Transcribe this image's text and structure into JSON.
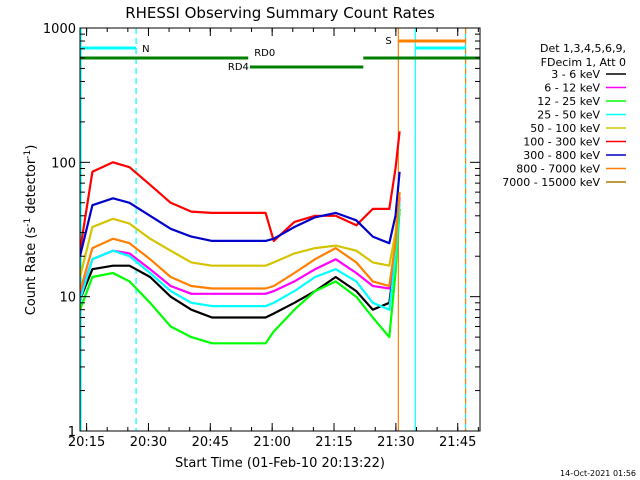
{
  "chart_data": {
    "type": "line",
    "title": "RHESSI Observing Summary Count Rates",
    "xlabel": "Start Time (01-Feb-10 20:13:22)",
    "ylabel_main": "Count Rate (s",
    "ylabel_sup1": "-1",
    "ylabel_mid": " detector",
    "ylabel_sup2": "-1",
    "ylabel_end": ")",
    "y_scale": "log",
    "ylim": [
      1,
      1000
    ],
    "xlim_minutes": [
      0,
      97
    ],
    "x_tick_labels": [
      {
        "label": "20:15",
        "t": 1.6
      },
      {
        "label": "20:30",
        "t": 16.6
      },
      {
        "label": "20:45",
        "t": 31.6
      },
      {
        "label": "21:00",
        "t": 46.6
      },
      {
        "label": "21:15",
        "t": 61.6
      },
      {
        "label": "21:30",
        "t": 76.6
      },
      {
        "label": "21:45",
        "t": 91.6
      }
    ],
    "y_tick_labels": [
      {
        "label": "1",
        "v": 1
      },
      {
        "label": "10",
        "v": 10
      },
      {
        "label": "100",
        "v": 100
      },
      {
        "label": "1000",
        "v": 1000
      }
    ],
    "legend_header": [
      "Det 1,3,4,5,6,9,",
      "FDecim 1, Att 0"
    ],
    "legend_position": "right",
    "timestamp": "14-Oct-2021 01:56",
    "series": [
      {
        "name": "3 - 6 keV",
        "color": "#000000",
        "x": [
          0,
          3,
          8,
          12,
          17,
          22,
          27,
          32,
          40,
          45,
          47,
          52,
          57,
          62,
          67,
          71,
          75,
          76.5,
          77.5
        ],
        "y": [
          9.5,
          16,
          17,
          17,
          14,
          10,
          8,
          7,
          7,
          7,
          7.5,
          9,
          11,
          14,
          11,
          8,
          9,
          20,
          45
        ]
      },
      {
        "name": "6 - 12 keV",
        "color": "#ff00ff",
        "x": [
          0,
          3,
          8,
          12,
          17,
          22,
          27,
          32,
          40,
          45,
          47,
          52,
          57,
          62,
          67,
          71,
          75,
          76.5,
          77.5
        ],
        "y": [
          10,
          19,
          22,
          21,
          16,
          12,
          10.5,
          10.5,
          10.5,
          10.5,
          11,
          13,
          16,
          19,
          15,
          12,
          11.5,
          25,
          55
        ]
      },
      {
        "name": "12 - 25 keV",
        "color": "#00ff00",
        "x": [
          0,
          3,
          8,
          12,
          17,
          22,
          27,
          32,
          40,
          45,
          47,
          52,
          57,
          62,
          67,
          71,
          75,
          76.5,
          77.5
        ],
        "y": [
          8,
          14,
          15,
          13,
          9,
          6,
          5,
          4.5,
          4.5,
          4.5,
          5.5,
          8,
          11,
          13,
          10,
          7,
          5,
          15,
          45
        ]
      },
      {
        "name": "25 - 50 keV",
        "color": "#00ffff",
        "x": [
          0,
          3,
          8,
          12,
          17,
          22,
          27,
          32,
          40,
          45,
          47,
          52,
          57,
          62,
          67,
          71,
          75,
          76.5,
          77.5
        ],
        "y": [
          9.5,
          19,
          22,
          20,
          15,
          11,
          9,
          8.5,
          8.5,
          8.5,
          9,
          11,
          14,
          16,
          13,
          9,
          8,
          20,
          50
        ]
      },
      {
        "name": "50 - 100 keV",
        "color": "#d4c400",
        "x": [
          0,
          3,
          8,
          12,
          17,
          22,
          27,
          32,
          40,
          45,
          47,
          52,
          57,
          62,
          67,
          71,
          75,
          76.5,
          77.5
        ],
        "y": [
          14,
          33,
          38,
          35,
          27,
          22,
          18,
          17,
          17,
          17,
          18,
          21,
          23,
          24,
          22,
          18,
          17,
          30,
          60
        ]
      },
      {
        "name": "100 - 300 keV",
        "color": "#ff0000",
        "x": [
          0,
          3,
          8,
          12,
          17,
          22,
          27,
          32,
          40,
          45,
          47,
          52,
          57,
          62,
          67,
          71,
          75,
          76.5,
          77.5
        ],
        "y": [
          22,
          85,
          100,
          92,
          68,
          50,
          43,
          42,
          42,
          42,
          26,
          36,
          40,
          40,
          34,
          45,
          45,
          90,
          170
        ]
      },
      {
        "name": "300 - 800 keV",
        "color": "#0000cc",
        "x": [
          0,
          3,
          8,
          12,
          17,
          22,
          27,
          32,
          40,
          45,
          47,
          52,
          57,
          62,
          67,
          71,
          75,
          76.5,
          77.5
        ],
        "y": [
          20,
          48,
          54,
          50,
          40,
          32,
          28,
          26,
          26,
          26,
          27,
          33,
          39,
          42,
          37,
          28,
          25,
          40,
          85
        ]
      },
      {
        "name": "800 - 7000 keV",
        "color": "#ff8000",
        "x": [
          0,
          3,
          8,
          12,
          17,
          22,
          27,
          32,
          40,
          45,
          47,
          52,
          57,
          62,
          67,
          71,
          75,
          76.5,
          77.5
        ],
        "y": [
          11,
          23,
          27,
          25,
          19,
          14,
          12,
          11.5,
          11.5,
          11.5,
          12,
          15,
          19,
          23,
          18,
          13,
          12,
          25,
          60
        ]
      },
      {
        "name": "7000 - 15000 keV",
        "color": "#a87800",
        "x": [],
        "y": []
      }
    ],
    "flags": [
      {
        "label": "N",
        "color": "#00ffff",
        "start": 0,
        "end": 13.6
      },
      {
        "label": "RD0",
        "color": "#007f00",
        "start": 0,
        "end": 40.8
      },
      {
        "label": "RD4",
        "color": "#007f00",
        "start": 41.2,
        "end": 68.7
      },
      {
        "label": "",
        "color": "#007f00",
        "start": 68.7,
        "end": 97
      },
      {
        "label": "S",
        "color": "#ff8000",
        "start": 77.2,
        "end": 93.5
      },
      {
        "label": "",
        "color": "#00ffff",
        "start": 81.3,
        "end": 93.5
      }
    ],
    "vertical_markers": [
      {
        "t": 13.6,
        "color": "#00ffff",
        "style": "dashed"
      },
      {
        "t": 77.2,
        "color": "#ff8000",
        "style": "solid"
      },
      {
        "t": 81.3,
        "color": "#00ffff",
        "style": "solid"
      },
      {
        "t": 93.5,
        "color": "#00ffff",
        "style": "solid"
      },
      {
        "t": 93.5,
        "color": "#ff8000",
        "style": "dashed"
      }
    ]
  }
}
